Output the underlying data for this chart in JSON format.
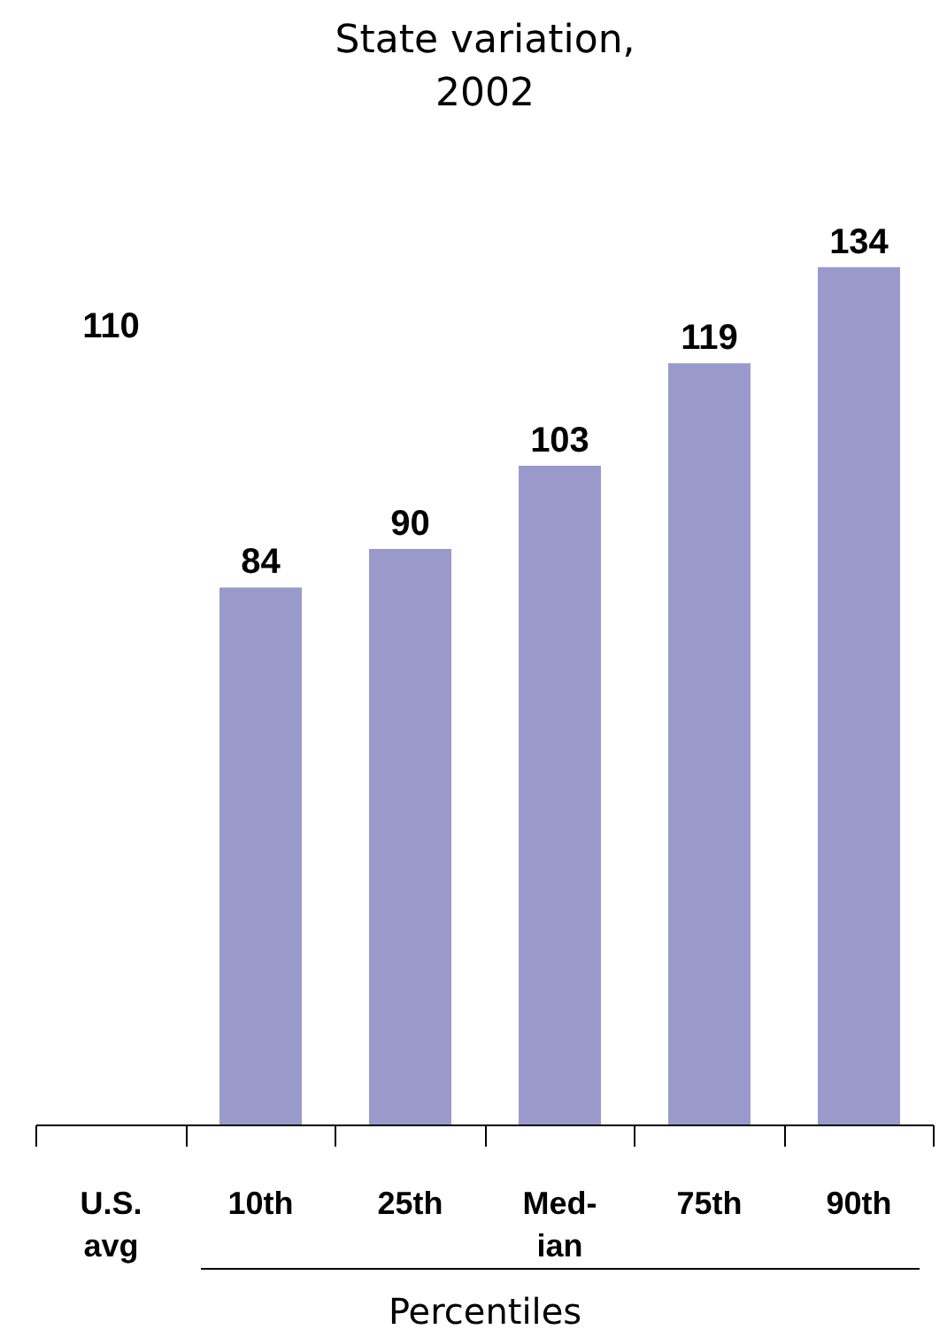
{
  "chart_data": {
    "type": "bar",
    "title": "State variation,\n2002",
    "xlabel": "Percentiles",
    "categories": [
      "U.S.\navg",
      "10th",
      "25th",
      "Med-\nian",
      "75th",
      "90th"
    ],
    "values": [
      null,
      84,
      90,
      103,
      119,
      134
    ],
    "annotations": [
      "110"
    ],
    "colors": [
      "#ffffff",
      "#9999cc",
      "#9999cc",
      "#9999cc",
      "#9999cc",
      "#9999cc"
    ],
    "data_labels": true
  }
}
